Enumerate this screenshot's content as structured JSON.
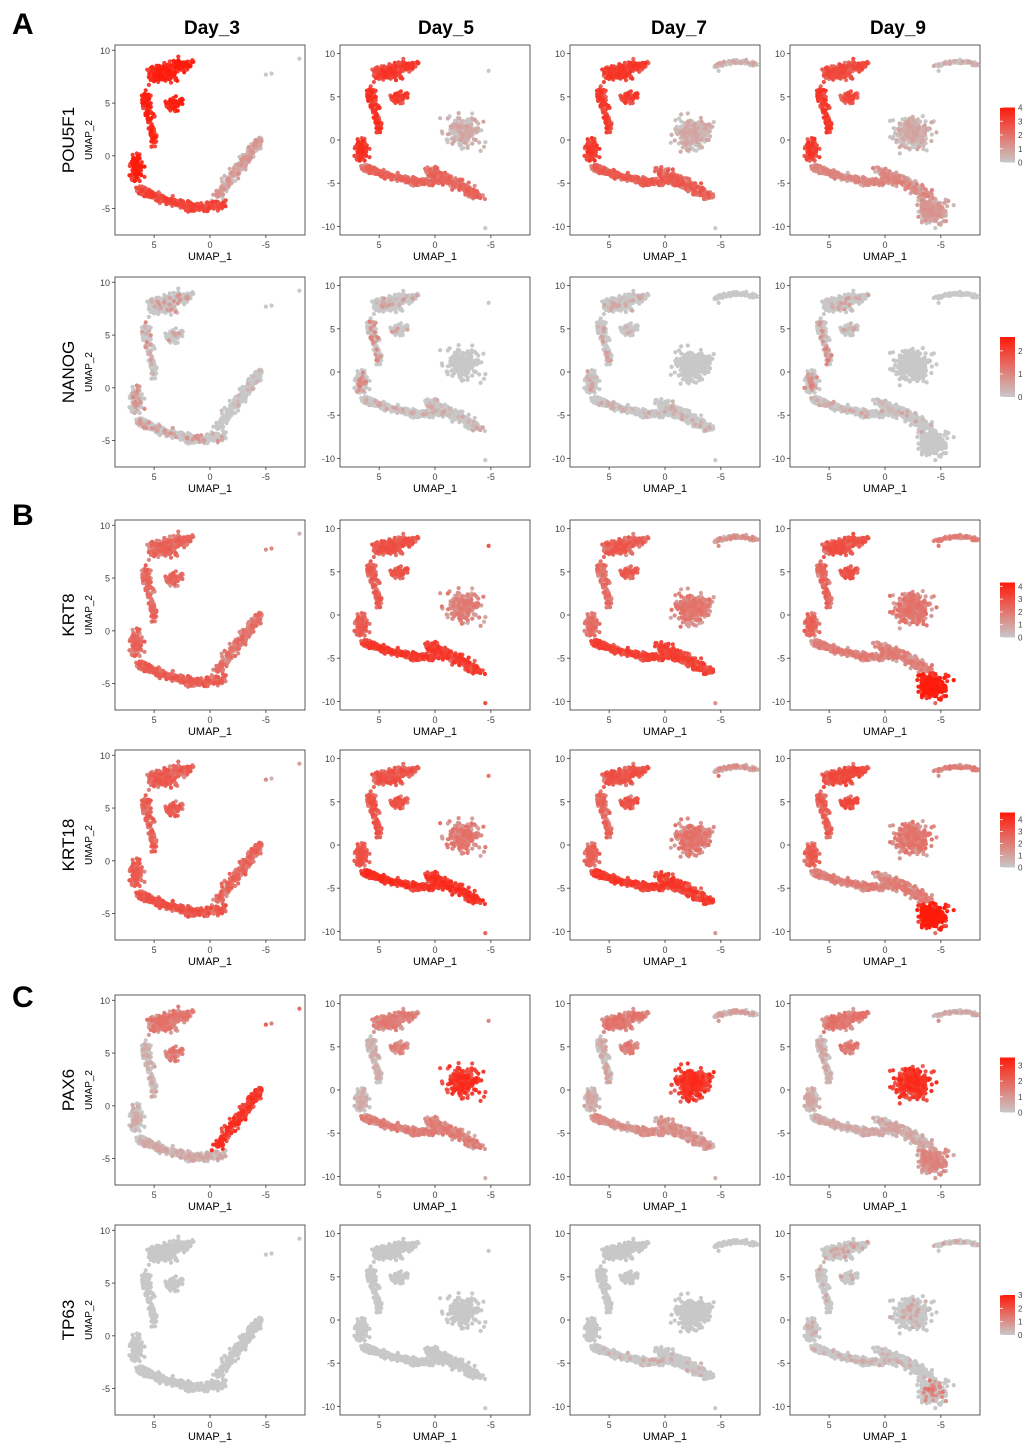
{
  "figure": {
    "panel_letters": [
      "A",
      "B",
      "C"
    ],
    "column_titles": [
      "Day_3",
      "Day_5",
      "Day_7",
      "Day_9"
    ],
    "x_axis_label": "UMAP_1",
    "y_axis_label": "UMAP_2",
    "low_color": "#c8c8c8",
    "high_color": "#ff1a0a",
    "colorbar_legend_position": "right"
  },
  "chart_data": {
    "type": "scatter",
    "description_layout": "grid of 6 gene rows x 4 day columns of UMAP feature plots",
    "x_axis": {
      "label": "UMAP_1",
      "reversed": true,
      "ticks": [
        5,
        0,
        -5
      ],
      "range": [
        8.5,
        -8.5
      ]
    },
    "y_axis_ticks": {
      "Day_3": [
        10,
        5,
        0,
        -5
      ],
      "Day_5": [
        10,
        5,
        0,
        -5,
        -10
      ],
      "Day_7": [
        10,
        5,
        0,
        -5,
        -10
      ],
      "Day_9": [
        10,
        5,
        0,
        -5,
        -10
      ]
    },
    "y_axis_ranges": {
      "Day_3": [
        -7.5,
        10.5
      ],
      "Day_5": [
        -11,
        11
      ],
      "Day_7": [
        -11,
        11
      ],
      "Day_9": [
        -11,
        11
      ]
    },
    "rows": [
      {
        "gene": "POU5F1",
        "panel": "A",
        "colorbar_ticks": [
          4,
          3,
          2,
          1,
          0
        ],
        "max": 4
      },
      {
        "gene": "NANOG",
        "panel": "A",
        "colorbar_ticks": [
          2,
          1,
          0
        ],
        "max": 2.6
      },
      {
        "gene": "KRT8",
        "panel": "B",
        "colorbar_ticks": [
          4,
          3,
          2,
          1,
          0
        ],
        "max": 4.3
      },
      {
        "gene": "KRT18",
        "panel": "B",
        "colorbar_ticks": [
          4,
          3,
          2,
          1,
          0
        ],
        "max": 4.6
      },
      {
        "gene": "PAX6",
        "panel": "C",
        "colorbar_ticks": [
          3,
          2,
          1,
          0
        ],
        "max": 3.5
      },
      {
        "gene": "TP63",
        "panel": "C",
        "colorbar_ticks": [
          3,
          2,
          1,
          0
        ],
        "max": 3
      }
    ],
    "regions": {
      "top_cluster": "upper left lobe, UMAP_1 ~6 to 0, UMAP_2 ~3 to 9.5",
      "left_arc": "UMAP_1 ~7 to 4, UMAP_2 ~-4 to 2",
      "bottom_band": "UMAP_1 ~5 to -3, UMAP_2 ~-6 to -3",
      "right_cluster": "UMAP_1 ~-1 to -5, UMAP_2 ~-2 to 4",
      "lower_right_cluster": "UMAP_1 ~-2 to -6, UMAP_2 ~-10 to -6 (Day_9)",
      "far_right_strip": "UMAP_1 ~-4 to -9, UMAP_2 ~8 to 9.5"
    },
    "expression_pattern": {
      "POU5F1": {
        "Day_3": "high in top_cluster and left_arc/bottom_band",
        "Day_5": "high in top_cluster and left_arc",
        "Day_7": "high in top_cluster and left_arc",
        "Day_9": "high in top_cluster and left_arc"
      },
      "NANOG": {
        "Day_3": "low, few positive cells",
        "Day_5": "low, sparse in left_arc",
        "Day_7": "mostly absent",
        "Day_9": "sparse in left_arc"
      },
      "KRT8": {
        "Day_3": "moderate throughout",
        "Day_5": "high in bottom_band tip",
        "Day_7": "high in bottom_band",
        "Day_9": "high in lower_right_cluster"
      },
      "KRT18": {
        "Day_3": "moderate throughout",
        "Day_5": "high in bottom_band tip",
        "Day_7": "high in bottom_band",
        "Day_9": "high in lower_right_cluster"
      },
      "PAX6": {
        "Day_3": "high in right_cluster",
        "Day_5": "high in right_cluster",
        "Day_7": "high in right_cluster",
        "Day_9": "high in right_cluster"
      },
      "TP63": {
        "Day_3": "absent",
        "Day_5": "one positive cell",
        "Day_7": "few positive cells in bottom_band",
        "Day_9": "positive in lower_right_cluster and top_cluster"
      }
    }
  }
}
